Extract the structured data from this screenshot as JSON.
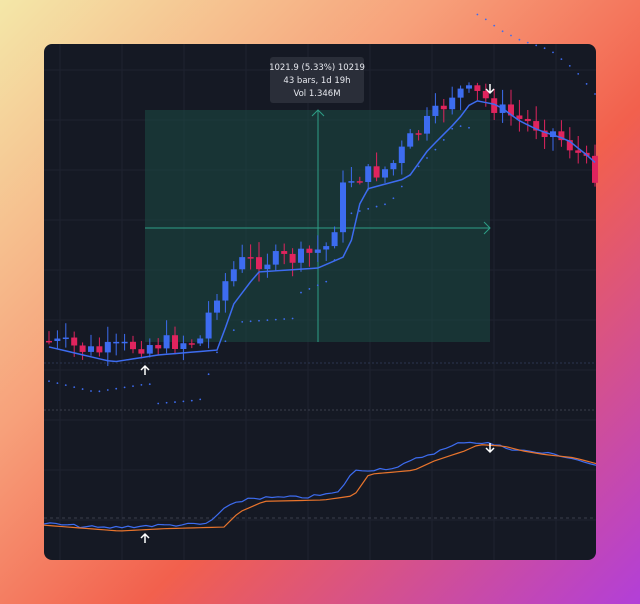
{
  "tooltip": {
    "line1": "1021.9 (5.33%) 10219",
    "line2": "43 bars, 1d 19h",
    "line3": "Vol 1.346M"
  }
}
